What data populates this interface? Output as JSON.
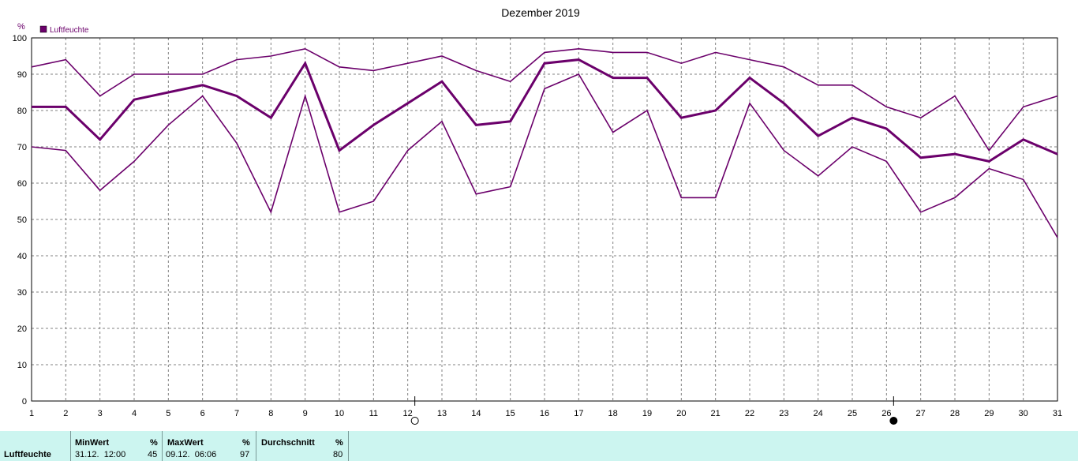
{
  "colors": {
    "series": "#6b006b",
    "grid": "#808080",
    "footer_bg": "#ccf5f0"
  },
  "chart_data": {
    "type": "line",
    "title": "Dezember 2019",
    "ylabel": "%",
    "legend": [
      "Luftfeuchte"
    ],
    "legend_position": "top-left",
    "grid": true,
    "ylim": [
      0,
      100
    ],
    "yticks": [
      "0",
      "10",
      "20",
      "30",
      "40",
      "50",
      "60",
      "70",
      "80",
      "90",
      "100"
    ],
    "x": [
      "1",
      "2",
      "3",
      "4",
      "5",
      "6",
      "7",
      "8",
      "9",
      "10",
      "11",
      "12",
      "13",
      "14",
      "15",
      "16",
      "17",
      "18",
      "19",
      "20",
      "21",
      "22",
      "23",
      "24",
      "25",
      "26",
      "27",
      "28",
      "29",
      "30",
      "31"
    ],
    "moon_markers": [
      {
        "day": 12,
        "phase": "full-moon"
      },
      {
        "day": 26,
        "phase": "new-moon"
      }
    ],
    "series": [
      {
        "role": "max",
        "values": [
          92,
          94,
          84,
          90,
          90,
          90,
          94,
          95,
          97,
          92,
          91,
          93,
          95,
          91,
          88,
          96,
          97,
          96,
          96,
          93,
          96,
          94,
          92,
          87,
          87,
          81,
          78,
          84,
          69,
          81,
          84
        ]
      },
      {
        "role": "avg",
        "values": [
          81,
          81,
          72,
          83,
          85,
          87,
          84,
          78,
          93,
          69,
          76,
          82,
          88,
          76,
          77,
          93,
          94,
          89,
          89,
          78,
          80,
          89,
          82,
          73,
          78,
          75,
          67,
          68,
          66,
          72,
          68
        ]
      },
      {
        "role": "min",
        "values": [
          70,
          69,
          58,
          66,
          76,
          84,
          71,
          52,
          84,
          52,
          55,
          69,
          77,
          57,
          59,
          86,
          90,
          74,
          80,
          56,
          56,
          82,
          69,
          62,
          70,
          66,
          52,
          56,
          64,
          61,
          45
        ]
      }
    ]
  },
  "footer": {
    "row_label": "Luftfeuchte",
    "min": {
      "header": "MinWert",
      "unit": "%",
      "time": "31.12.  12:00",
      "value": "45"
    },
    "max": {
      "header": "MaxWert",
      "unit": "%",
      "time": "09.12.  06:06",
      "value": "97"
    },
    "avg": {
      "header": "Durchschnitt",
      "unit": "%",
      "value": "80"
    }
  }
}
